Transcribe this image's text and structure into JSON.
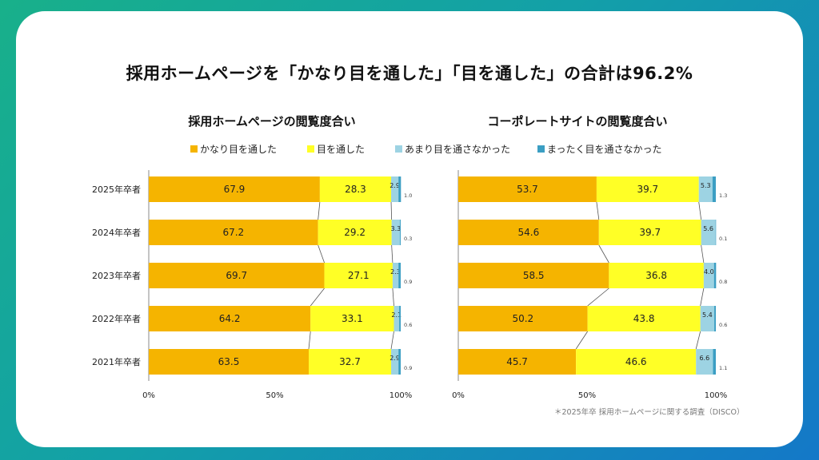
{
  "title": "採用ホームページを「かなり目を通した」「目を通した」の合計は96.2%",
  "footnote": "＊2025年卒 採用ホームページに関する調査（DISCO）",
  "legend": [
    {
      "label": "かなり目を通した",
      "color": "#f5b400"
    },
    {
      "label": "目を通した",
      "color": "#ffff26"
    },
    {
      "label": "あまり目を通さなかった",
      "color": "#9dd3e3"
    },
    {
      "label": "まったく目を通さなかった",
      "color": "#3b9ec3"
    }
  ],
  "chart_data": [
    {
      "type": "bar",
      "stacked": true,
      "orientation": "horizontal",
      "title": "採用ホームページの閲覧度合い",
      "categories": [
        "2025年卒者",
        "2024年卒者",
        "2023年卒者",
        "2022年卒者",
        "2021年卒者"
      ],
      "series": [
        {
          "name": "かなり目を通した",
          "values": [
            67.9,
            67.2,
            69.7,
            64.2,
            63.5
          ]
        },
        {
          "name": "目を通した",
          "values": [
            28.3,
            29.2,
            27.1,
            33.1,
            32.7
          ]
        },
        {
          "name": "あまり目を通さなかった",
          "values": [
            2.9,
            3.3,
            2.3,
            2.1,
            2.9
          ]
        },
        {
          "name": "まったく目を通さなかった",
          "values": [
            1.0,
            0.3,
            0.9,
            0.6,
            0.9
          ]
        }
      ],
      "xlim": [
        0,
        100
      ],
      "xticks": [
        "0%",
        "50%",
        "100%"
      ],
      "legend_position": "top",
      "grid": false
    },
    {
      "type": "bar",
      "stacked": true,
      "orientation": "horizontal",
      "title": "コーポレートサイトの閲覧度合い",
      "categories": [
        "2025年卒者",
        "2024年卒者",
        "2023年卒者",
        "2022年卒者",
        "2021年卒者"
      ],
      "series": [
        {
          "name": "かなり目を通した",
          "values": [
            53.7,
            54.6,
            58.5,
            50.2,
            45.7
          ]
        },
        {
          "name": "目を通した",
          "values": [
            39.7,
            39.7,
            36.8,
            43.8,
            46.6
          ]
        },
        {
          "name": "あまり目を通さなかった",
          "values": [
            5.3,
            5.6,
            4.0,
            5.4,
            6.6
          ]
        },
        {
          "name": "まったく目を通さなかった",
          "values": [
            1.3,
            0.1,
            0.8,
            0.6,
            1.1
          ]
        }
      ],
      "xlim": [
        0,
        100
      ],
      "xticks": [
        "0%",
        "50%",
        "100%"
      ],
      "legend_position": "top",
      "grid": false
    }
  ]
}
